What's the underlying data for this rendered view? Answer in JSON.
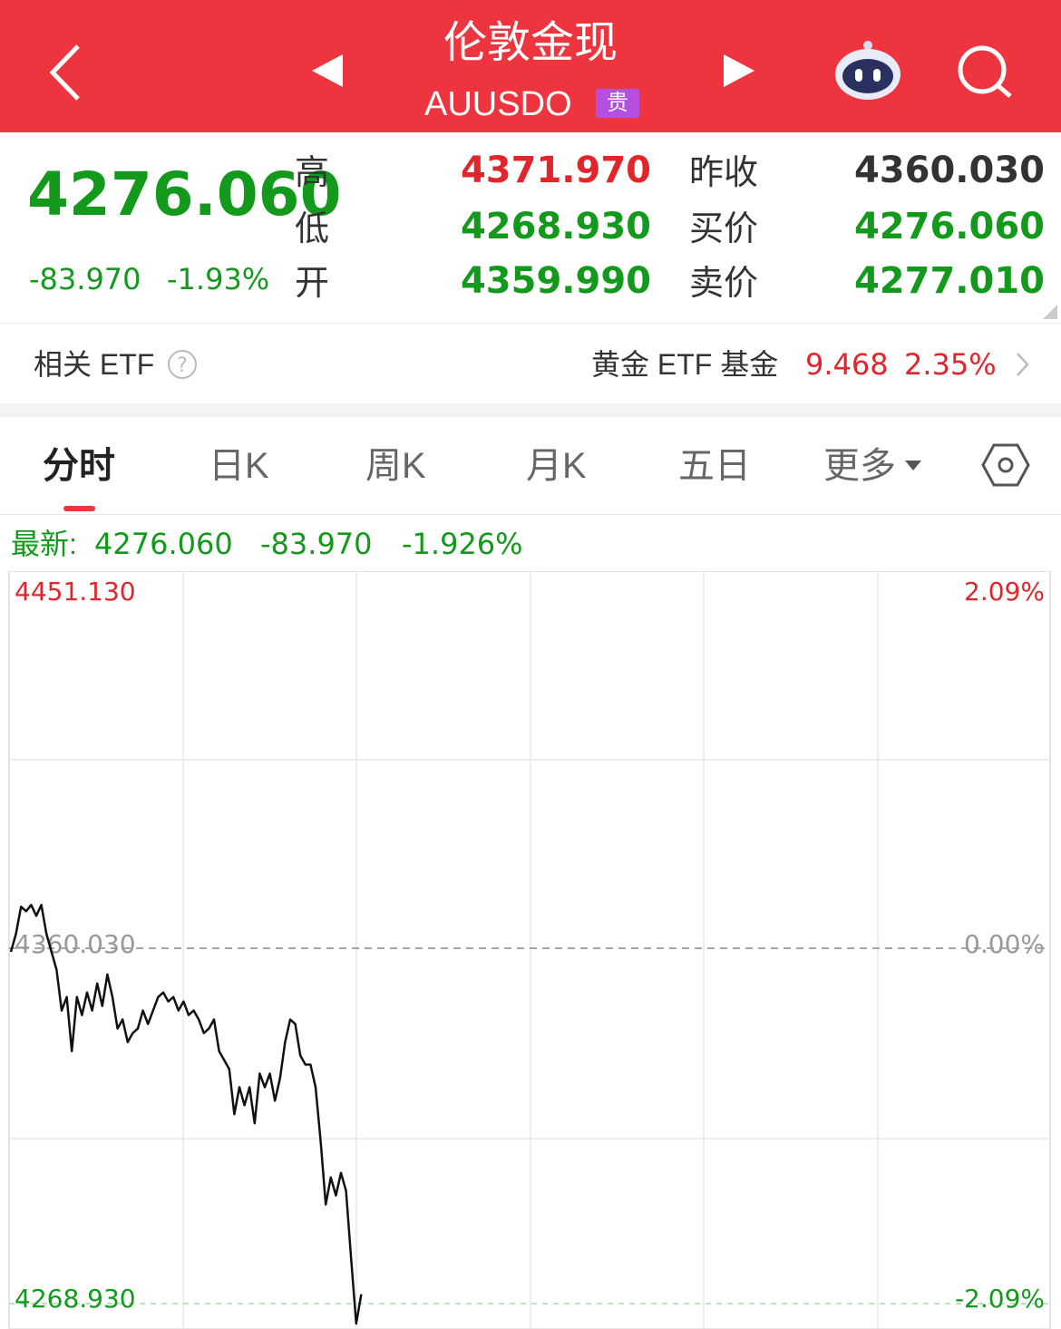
{
  "header": {
    "title": "伦敦金现",
    "code": "AUUSDO",
    "badge": "贵"
  },
  "quote": {
    "price": "4276.060",
    "change": "-83.970",
    "change_pct": "-1.93%",
    "rows": [
      {
        "label": "高",
        "value": "4371.970",
        "label2": "昨收",
        "value2": "4360.030"
      },
      {
        "label": "低",
        "value": "4268.930",
        "label2": "买价",
        "value2": "4276.060"
      },
      {
        "label": "开",
        "value": "4359.990",
        "label2": "卖价",
        "value2": "4277.010"
      }
    ]
  },
  "etf": {
    "label": "相关 ETF",
    "name": "黄金 ETF 基金",
    "price": "9.468",
    "pct": "2.35%"
  },
  "tabs": [
    "分时",
    "日K",
    "周K",
    "月K",
    "五日",
    "更多"
  ],
  "latest": {
    "label": "最新:",
    "price": "4276.060",
    "change": "-83.970",
    "pct": "-1.926%"
  },
  "chart_data": {
    "type": "line",
    "color": "#111111",
    "values": [
      4359.15,
      4363.53,
      4370.1,
      4369.01,
      4370.54,
      4367.91,
      4370.54,
      4363.53,
      4359.15,
      4354.77,
      4344.92,
      4348.2,
      4335.06,
      4348.2,
      4343.82,
      4349.3,
      4344.92,
      4351.49,
      4346.01,
      4353.68,
      4348.2,
      4340.54,
      4342.73,
      4337.25,
      4339.44,
      4340.54,
      4344.92,
      4341.63,
      4344.92,
      4348.2,
      4349.3,
      4347.11,
      4348.2,
      4344.92,
      4347.11,
      4343.82,
      4344.92,
      4342.73,
      4339.44,
      4340.54,
      4342.73,
      4335.06,
      4332.87,
      4330.68,
      4319.73,
      4326.3,
      4321.92,
      4326.3,
      4317.54,
      4329.59,
      4326.3,
      4329.59,
      4323.02,
      4328.49,
      4337.25,
      4342.73,
      4341.63,
      4333.97,
      4331.78,
      4331.78,
      4326.3,
      4313.16,
      4297.83,
      4304.4,
      4300.02,
      4305.5,
      4301.12,
      4284.69,
      4268.93,
      4276.06
    ],
    "ylim": [
      4268.93,
      4451.13
    ],
    "yticks": [
      {
        "value": 4268.93,
        "label": "4268.930"
      },
      {
        "value": 4360.03,
        "label": "4360.030"
      },
      {
        "value": 4451.13,
        "label": "4451.130"
      }
    ],
    "y2lim": [
      -2.09,
      2.09
    ],
    "y2ticks": [
      {
        "value": -2.09,
        "label": "-2.09%"
      },
      {
        "value": 0,
        "label": "0.00%"
      },
      {
        "value": 2.09,
        "label": "2.09%"
      }
    ],
    "grid": true
  }
}
